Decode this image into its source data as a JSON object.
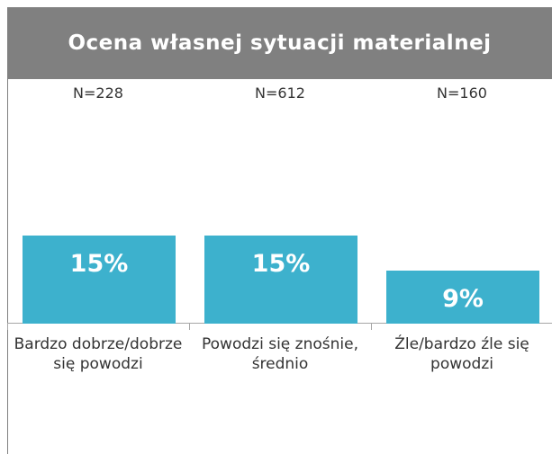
{
  "chart_data": {
    "type": "bar",
    "title": "Ocena własnej sytuacji materialnej",
    "categories": [
      "Bardzo dobrze/dobrze się powodzi",
      "Powodzi się znośnie, średnio",
      "Źle/bardzo źle się powodzi"
    ],
    "n_labels": [
      "N=228",
      "N=612",
      "N=160"
    ],
    "values": [
      15,
      15,
      9
    ],
    "value_labels": [
      "15%",
      "15%",
      "9%"
    ],
    "color": "#3db1cd"
  }
}
